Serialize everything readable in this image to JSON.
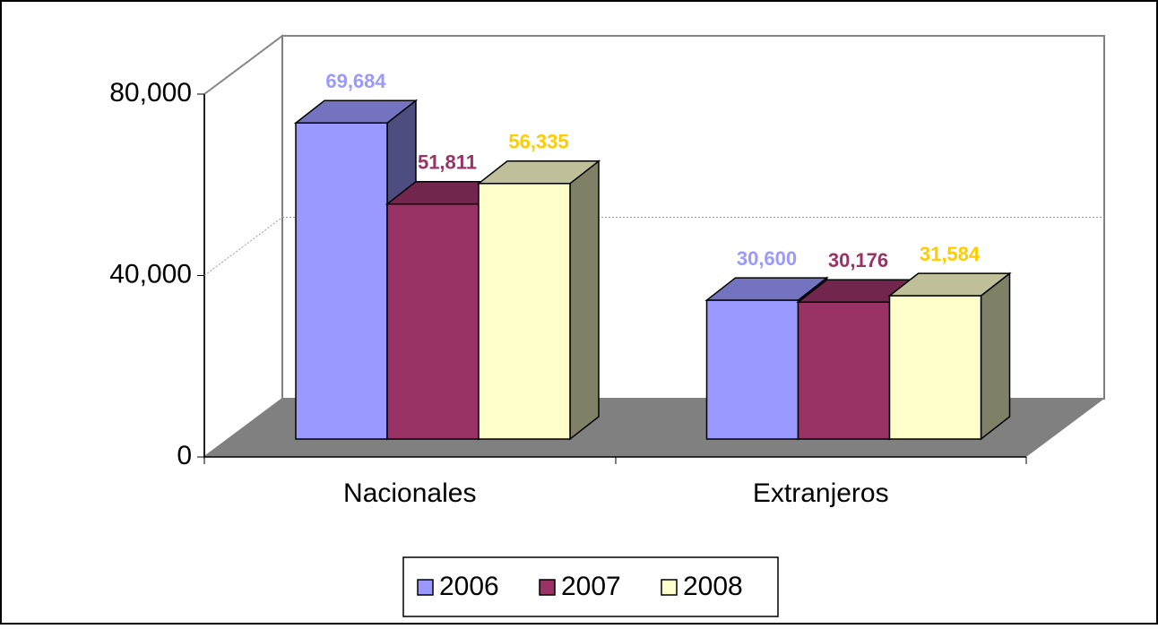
{
  "chart_data": {
    "type": "bar3d",
    "categories": [
      "Nacionales",
      "Extranjeros"
    ],
    "series": [
      {
        "name": "2006",
        "color": "#9999ff",
        "label_color": "#9999ff",
        "values": [
          69684,
          30600
        ],
        "value_labels": [
          "69,684",
          "30,600"
        ]
      },
      {
        "name": "2007",
        "color": "#993366",
        "label_color": "#993366",
        "values": [
          51811,
          30176
        ],
        "value_labels": [
          "51,811",
          "30,176"
        ]
      },
      {
        "name": "2008",
        "color": "#ffffcc",
        "label_color": "#ffcc00",
        "values": [
          56335,
          31584
        ],
        "value_labels": [
          "56,335",
          "31,584"
        ]
      }
    ],
    "ylim": [
      0,
      80000
    ],
    "yticks": [
      0,
      {
        "value": 40000,
        "label": "40,000"
      },
      {
        "value": 80000,
        "label": "80,000"
      }
    ],
    "grid": true,
    "legend": "bottom"
  }
}
